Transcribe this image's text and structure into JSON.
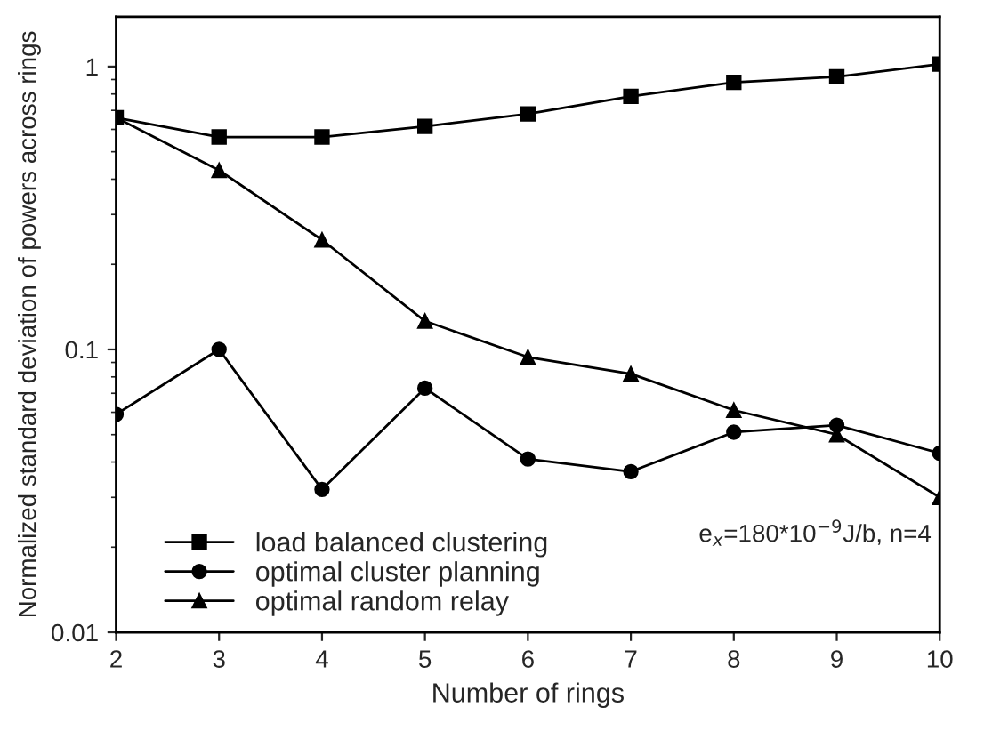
{
  "chart_data": {
    "type": "line",
    "xlabel": "Number of rings",
    "ylabel": "Normalized standard deviation of powers across rings",
    "x": [
      2,
      3,
      4,
      5,
      6,
      7,
      8,
      9,
      10
    ],
    "series": [
      {
        "name": "load balanced clustering",
        "color": "#000000",
        "marker": "square",
        "values": [
          0.66,
          0.564,
          0.564,
          0.615,
          0.68,
          0.785,
          0.88,
          0.92,
          1.02
        ]
      },
      {
        "name": "optimal cluster planning",
        "color": "#000000",
        "marker": "circle",
        "values": [
          0.059,
          0.1,
          0.032,
          0.073,
          0.041,
          0.037,
          0.051,
          0.054,
          0.043
        ]
      },
      {
        "name": "optimal random relay",
        "color": "#000000",
        "marker": "triangle",
        "values": [
          0.66,
          0.43,
          0.244,
          0.126,
          0.094,
          0.082,
          0.061,
          0.05,
          0.03
        ]
      }
    ],
    "log": "y",
    "xlim": [
      2,
      10
    ],
    "xticks": [
      2,
      3,
      4,
      5,
      6,
      7,
      8,
      9,
      10
    ],
    "ylim": [
      0.01,
      1.5
    ],
    "yticks": [
      0.01,
      0.1,
      1
    ],
    "grid": false,
    "legend": "bottom left",
    "line_style": "solid",
    "annotations": [
      "e$_{x}$=180*10$^{−9}$J/b, n=4"
    ]
  }
}
